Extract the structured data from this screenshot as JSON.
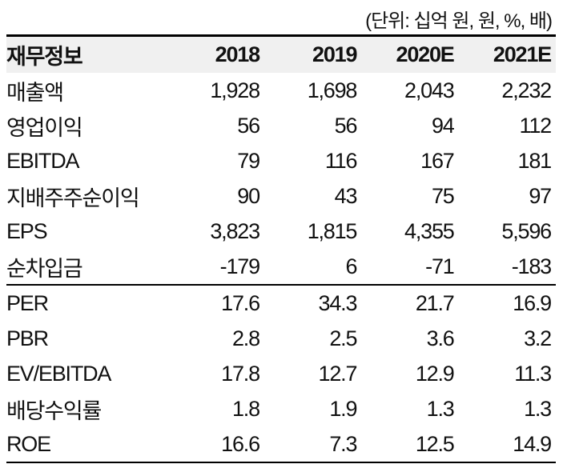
{
  "unit_note": "(단위: 십억 원, 원, %, 배)",
  "header": [
    "재무정보",
    "2018",
    "2019",
    "2020E",
    "2021E"
  ],
  "rows": [
    [
      "매출액",
      "1,928",
      "1,698",
      "2,043",
      "2,232"
    ],
    [
      "영업이익",
      "56",
      "56",
      "94",
      "112"
    ],
    [
      "EBITDA",
      "79",
      "116",
      "167",
      "181"
    ],
    [
      "지배주주순이익",
      "90",
      "43",
      "75",
      "97"
    ],
    [
      "EPS",
      "3,823",
      "1,815",
      "4,355",
      "5,596"
    ],
    [
      "순차입금",
      "-179",
      "6",
      "-71",
      "-183"
    ],
    [
      "PER",
      "17.6",
      "34.3",
      "21.7",
      "16.9"
    ],
    [
      "PBR",
      "2.8",
      "2.5",
      "3.6",
      "3.2"
    ],
    [
      "EV/EBITDA",
      "17.8",
      "12.7",
      "12.9",
      "11.3"
    ],
    [
      "배당수익률",
      "1.8",
      "1.9",
      "1.3",
      "1.3"
    ],
    [
      "ROE",
      "16.6",
      "7.3",
      "12.5",
      "14.9"
    ]
  ]
}
